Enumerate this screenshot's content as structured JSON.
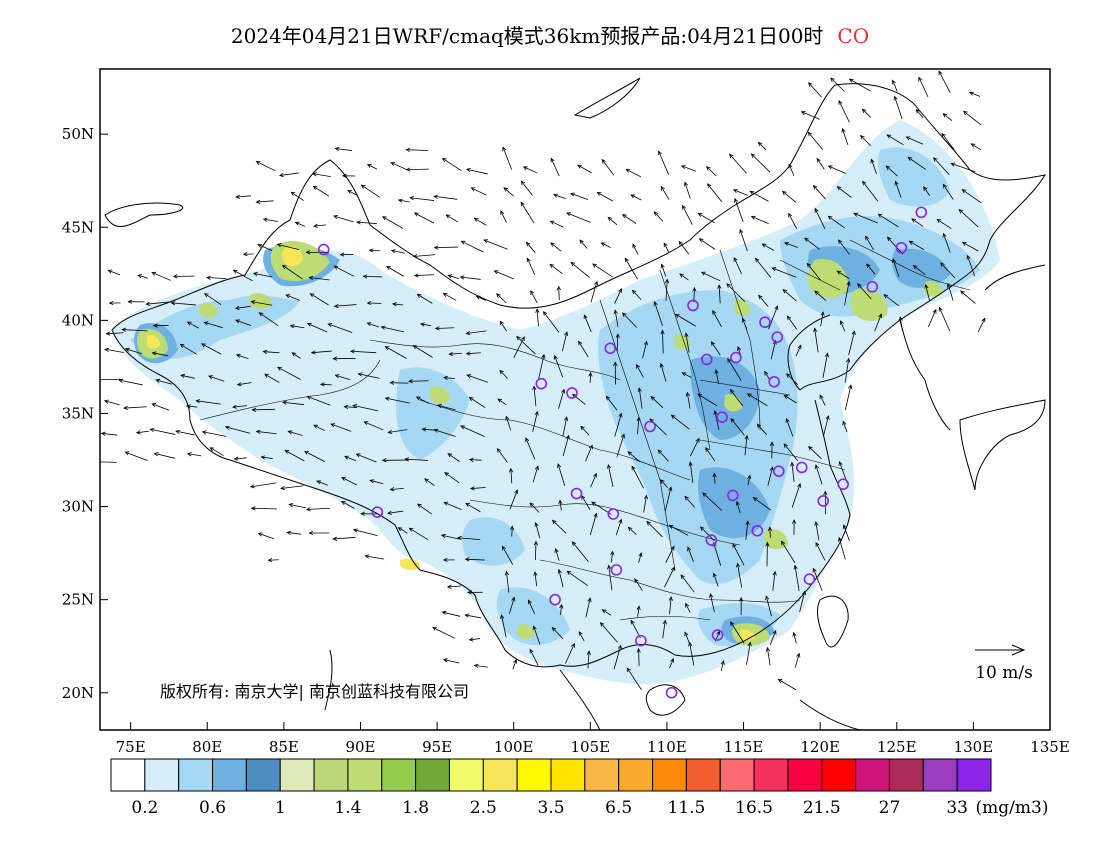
{
  "title": {
    "text": "2024年04月21日WRF/cmaq模式36km预报产品:04月21日00时",
    "species": "CO",
    "species_color": "#e53030"
  },
  "axes": {
    "lon_ticks": [
      "75E",
      "80E",
      "85E",
      "90E",
      "95E",
      "100E",
      "105E",
      "110E",
      "115E",
      "120E",
      "125E",
      "130E",
      "135E"
    ],
    "lon_values": [
      75,
      80,
      85,
      90,
      95,
      100,
      105,
      110,
      115,
      120,
      125,
      130,
      135
    ],
    "lat_ticks": [
      "20N",
      "25N",
      "30N",
      "35N",
      "40N",
      "45N",
      "50N"
    ],
    "lat_values": [
      20,
      25,
      30,
      35,
      40,
      45,
      50
    ],
    "lon_range": [
      73,
      135
    ],
    "lat_range": [
      18,
      53.5
    ]
  },
  "copyright": "版权所有: 南京大学| 南京创蓝科技有限公司",
  "wind_scale_label": "10 m/s",
  "colorbar": {
    "unit": "(mg/m3)",
    "labels": [
      "0.2",
      "0.6",
      "1",
      "1.4",
      "1.8",
      "2.5",
      "3.5",
      "6.5",
      "11.5",
      "16.5",
      "21.5",
      "27",
      "33"
    ],
    "colors": [
      "#ffffff",
      "#d6eefa",
      "#a6d8f4",
      "#6eb0e0",
      "#4a8ec4",
      "#dfeab8",
      "#bcd779",
      "#bddc73",
      "#94cc4f",
      "#72a838",
      "#f2fb6a",
      "#f5e65a",
      "#fff700",
      "#ffe400",
      "#f8b746",
      "#f9a82d",
      "#fb8a08",
      "#f15d30",
      "#fe6a72",
      "#f5305a",
      "#f80245",
      "#ff0000",
      "#ce1478",
      "#ab2b59",
      "#9b3dbf",
      "#8a24e6"
    ]
  },
  "sites": [
    {
      "lon": 87.6,
      "lat": 43.8
    },
    {
      "lon": 91.1,
      "lat": 29.7
    },
    {
      "lon": 101.8,
      "lat": 36.6
    },
    {
      "lon": 103.8,
      "lat": 36.1
    },
    {
      "lon": 106.3,
      "lat": 38.5
    },
    {
      "lon": 111.7,
      "lat": 40.8
    },
    {
      "lon": 112.6,
      "lat": 37.9
    },
    {
      "lon": 114.5,
      "lat": 38.0
    },
    {
      "lon": 116.4,
      "lat": 39.9
    },
    {
      "lon": 117.2,
      "lat": 39.1
    },
    {
      "lon": 117.0,
      "lat": 36.7
    },
    {
      "lon": 113.6,
      "lat": 34.8
    },
    {
      "lon": 108.9,
      "lat": 34.3
    },
    {
      "lon": 104.1,
      "lat": 30.7
    },
    {
      "lon": 106.5,
      "lat": 29.6
    },
    {
      "lon": 106.7,
      "lat": 26.6
    },
    {
      "lon": 102.7,
      "lat": 25.0
    },
    {
      "lon": 108.3,
      "lat": 22.8
    },
    {
      "lon": 113.3,
      "lat": 23.1
    },
    {
      "lon": 110.3,
      "lat": 20.0
    },
    {
      "lon": 112.9,
      "lat": 28.2
    },
    {
      "lon": 114.3,
      "lat": 30.6
    },
    {
      "lon": 115.9,
      "lat": 28.7
    },
    {
      "lon": 117.3,
      "lat": 31.9
    },
    {
      "lon": 118.8,
      "lat": 32.1
    },
    {
      "lon": 120.2,
      "lat": 30.3
    },
    {
      "lon": 121.5,
      "lat": 31.2
    },
    {
      "lon": 119.3,
      "lat": 26.1
    },
    {
      "lon": 123.4,
      "lat": 41.8
    },
    {
      "lon": 125.3,
      "lat": 43.9
    },
    {
      "lon": 126.6,
      "lat": 45.8
    }
  ]
}
